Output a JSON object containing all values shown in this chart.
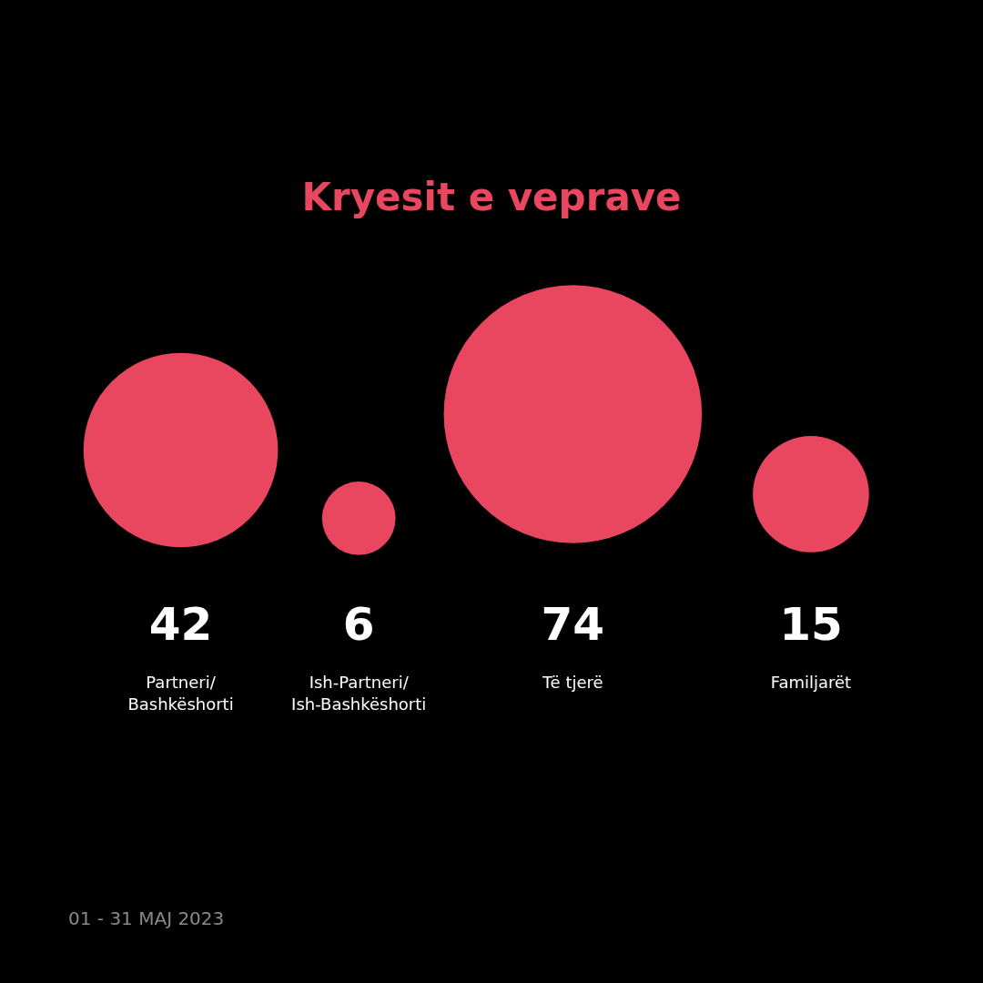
{
  "chart_data": {
    "type": "other",
    "title": "Kryesit e veprave",
    "categories": [
      "Partneri/\nBashkëshorti",
      "Ish-Partneri/\nIsh-Bashkëshorti",
      "Të tjerë",
      "Familjarët"
    ],
    "values": [
      42,
      6,
      74,
      15
    ],
    "color": "#e8475f",
    "data_labels": true,
    "annotations": [
      "01 - 31 MAJ 2023"
    ]
  }
}
